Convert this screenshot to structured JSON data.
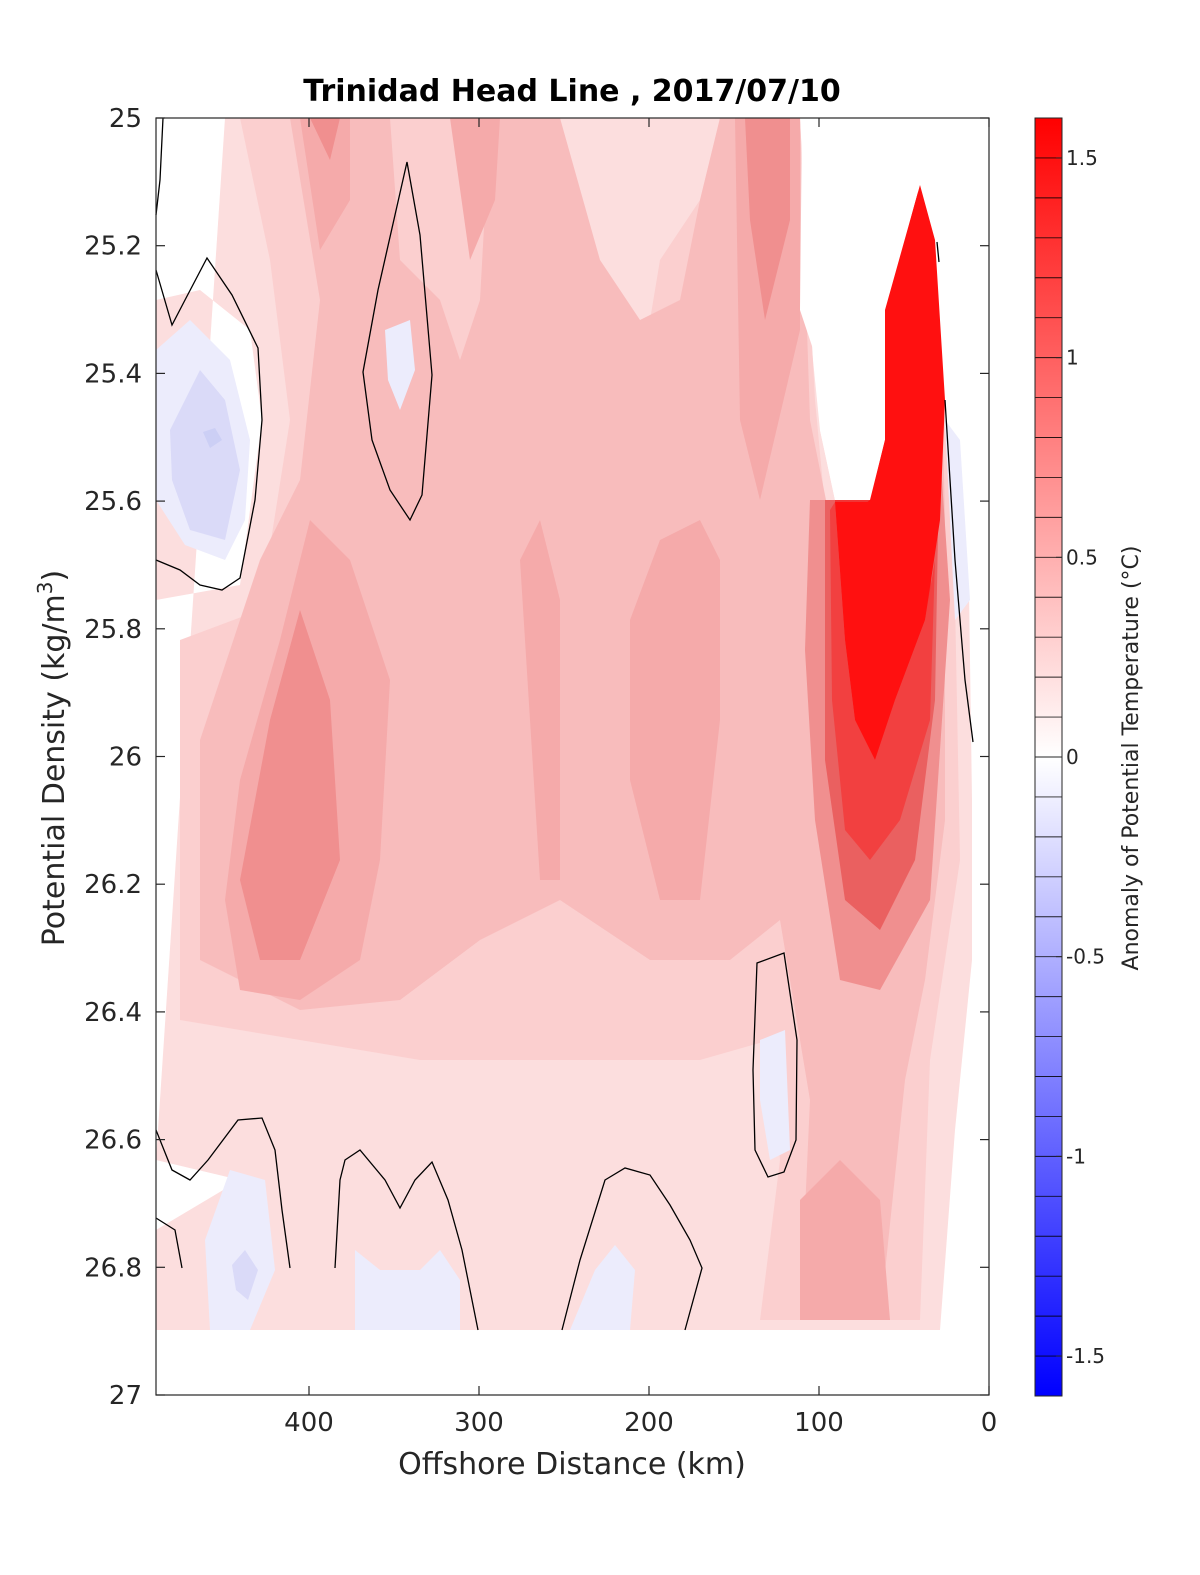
{
  "chart_data": {
    "type": "heatmap",
    "subtype": "filled-contour",
    "title": "Trinidad Head Line , 2017/07/10",
    "xlabel": "Offshore Distance (km)",
    "ylabel": "Potential Density (kg/m",
    "ylabel_sup": "3",
    "ylabel_close": ")",
    "colorbar_label": "Anomaly of Potential Temperature (°C)",
    "xlim": [
      490,
      0
    ],
    "x_reversed": true,
    "ylim": [
      25,
      27
    ],
    "y_reversed": true,
    "x_ticks": [
      400,
      300,
      200,
      100,
      0
    ],
    "y_ticks": [
      25,
      25.2,
      25.4,
      25.6,
      25.8,
      26,
      26.2,
      26.4,
      26.6,
      26.8,
      27
    ],
    "x_tick_labels": [
      "400",
      "300",
      "200",
      "100",
      "0"
    ],
    "y_tick_labels": [
      "25",
      "25.2",
      "25.4",
      "25.6",
      "25.8",
      "26",
      "26.2",
      "26.4",
      "26.6",
      "26.8",
      "27"
    ],
    "colorbar": {
      "clim": [
        -1.6,
        1.6
      ],
      "levels_step": 0.1,
      "ticks": [
        1.5,
        1,
        0.5,
        0,
        -0.5,
        -1,
        -1.5
      ],
      "tick_labels": [
        "1.5",
        "1",
        "0.5",
        "0",
        "-0.5",
        "-1",
        "-1.5"
      ],
      "colormap": "blue-white-red",
      "neg_color": "#0000ff",
      "zero_color": "#ffffff",
      "pos_color": "#ff0000"
    },
    "grid": false,
    "regions": [
      {
        "name": "strong warm core near shore",
        "x": [
          110,
          35
        ],
        "y": [
          25.1,
          26.4
        ],
        "peak_anomaly": 1.5,
        "peak_at": [
          70,
          25.7
        ]
      },
      {
        "name": "warm band offshore",
        "x": [
          440,
          340
        ],
        "y": [
          25.8,
          26.35
        ],
        "anomaly": 0.5
      },
      {
        "name": "cool patch",
        "x": [
          490,
          420
        ],
        "y": [
          25.3,
          25.7
        ],
        "anomaly": -0.2
      },
      {
        "name": "cool patch",
        "x": [
          350,
          330
        ],
        "y": [
          25.3,
          25.5
        ],
        "anomaly": -0.1
      },
      {
        "name": "cool patch",
        "x": [
          135,
          115
        ],
        "y": [
          26.35,
          26.65
        ],
        "anomaly": -0.1
      },
      {
        "name": "cool patches near bottom",
        "x": [
          460,
          200
        ],
        "y": [
          26.7,
          26.9
        ],
        "anomaly": -0.15
      }
    ]
  }
}
